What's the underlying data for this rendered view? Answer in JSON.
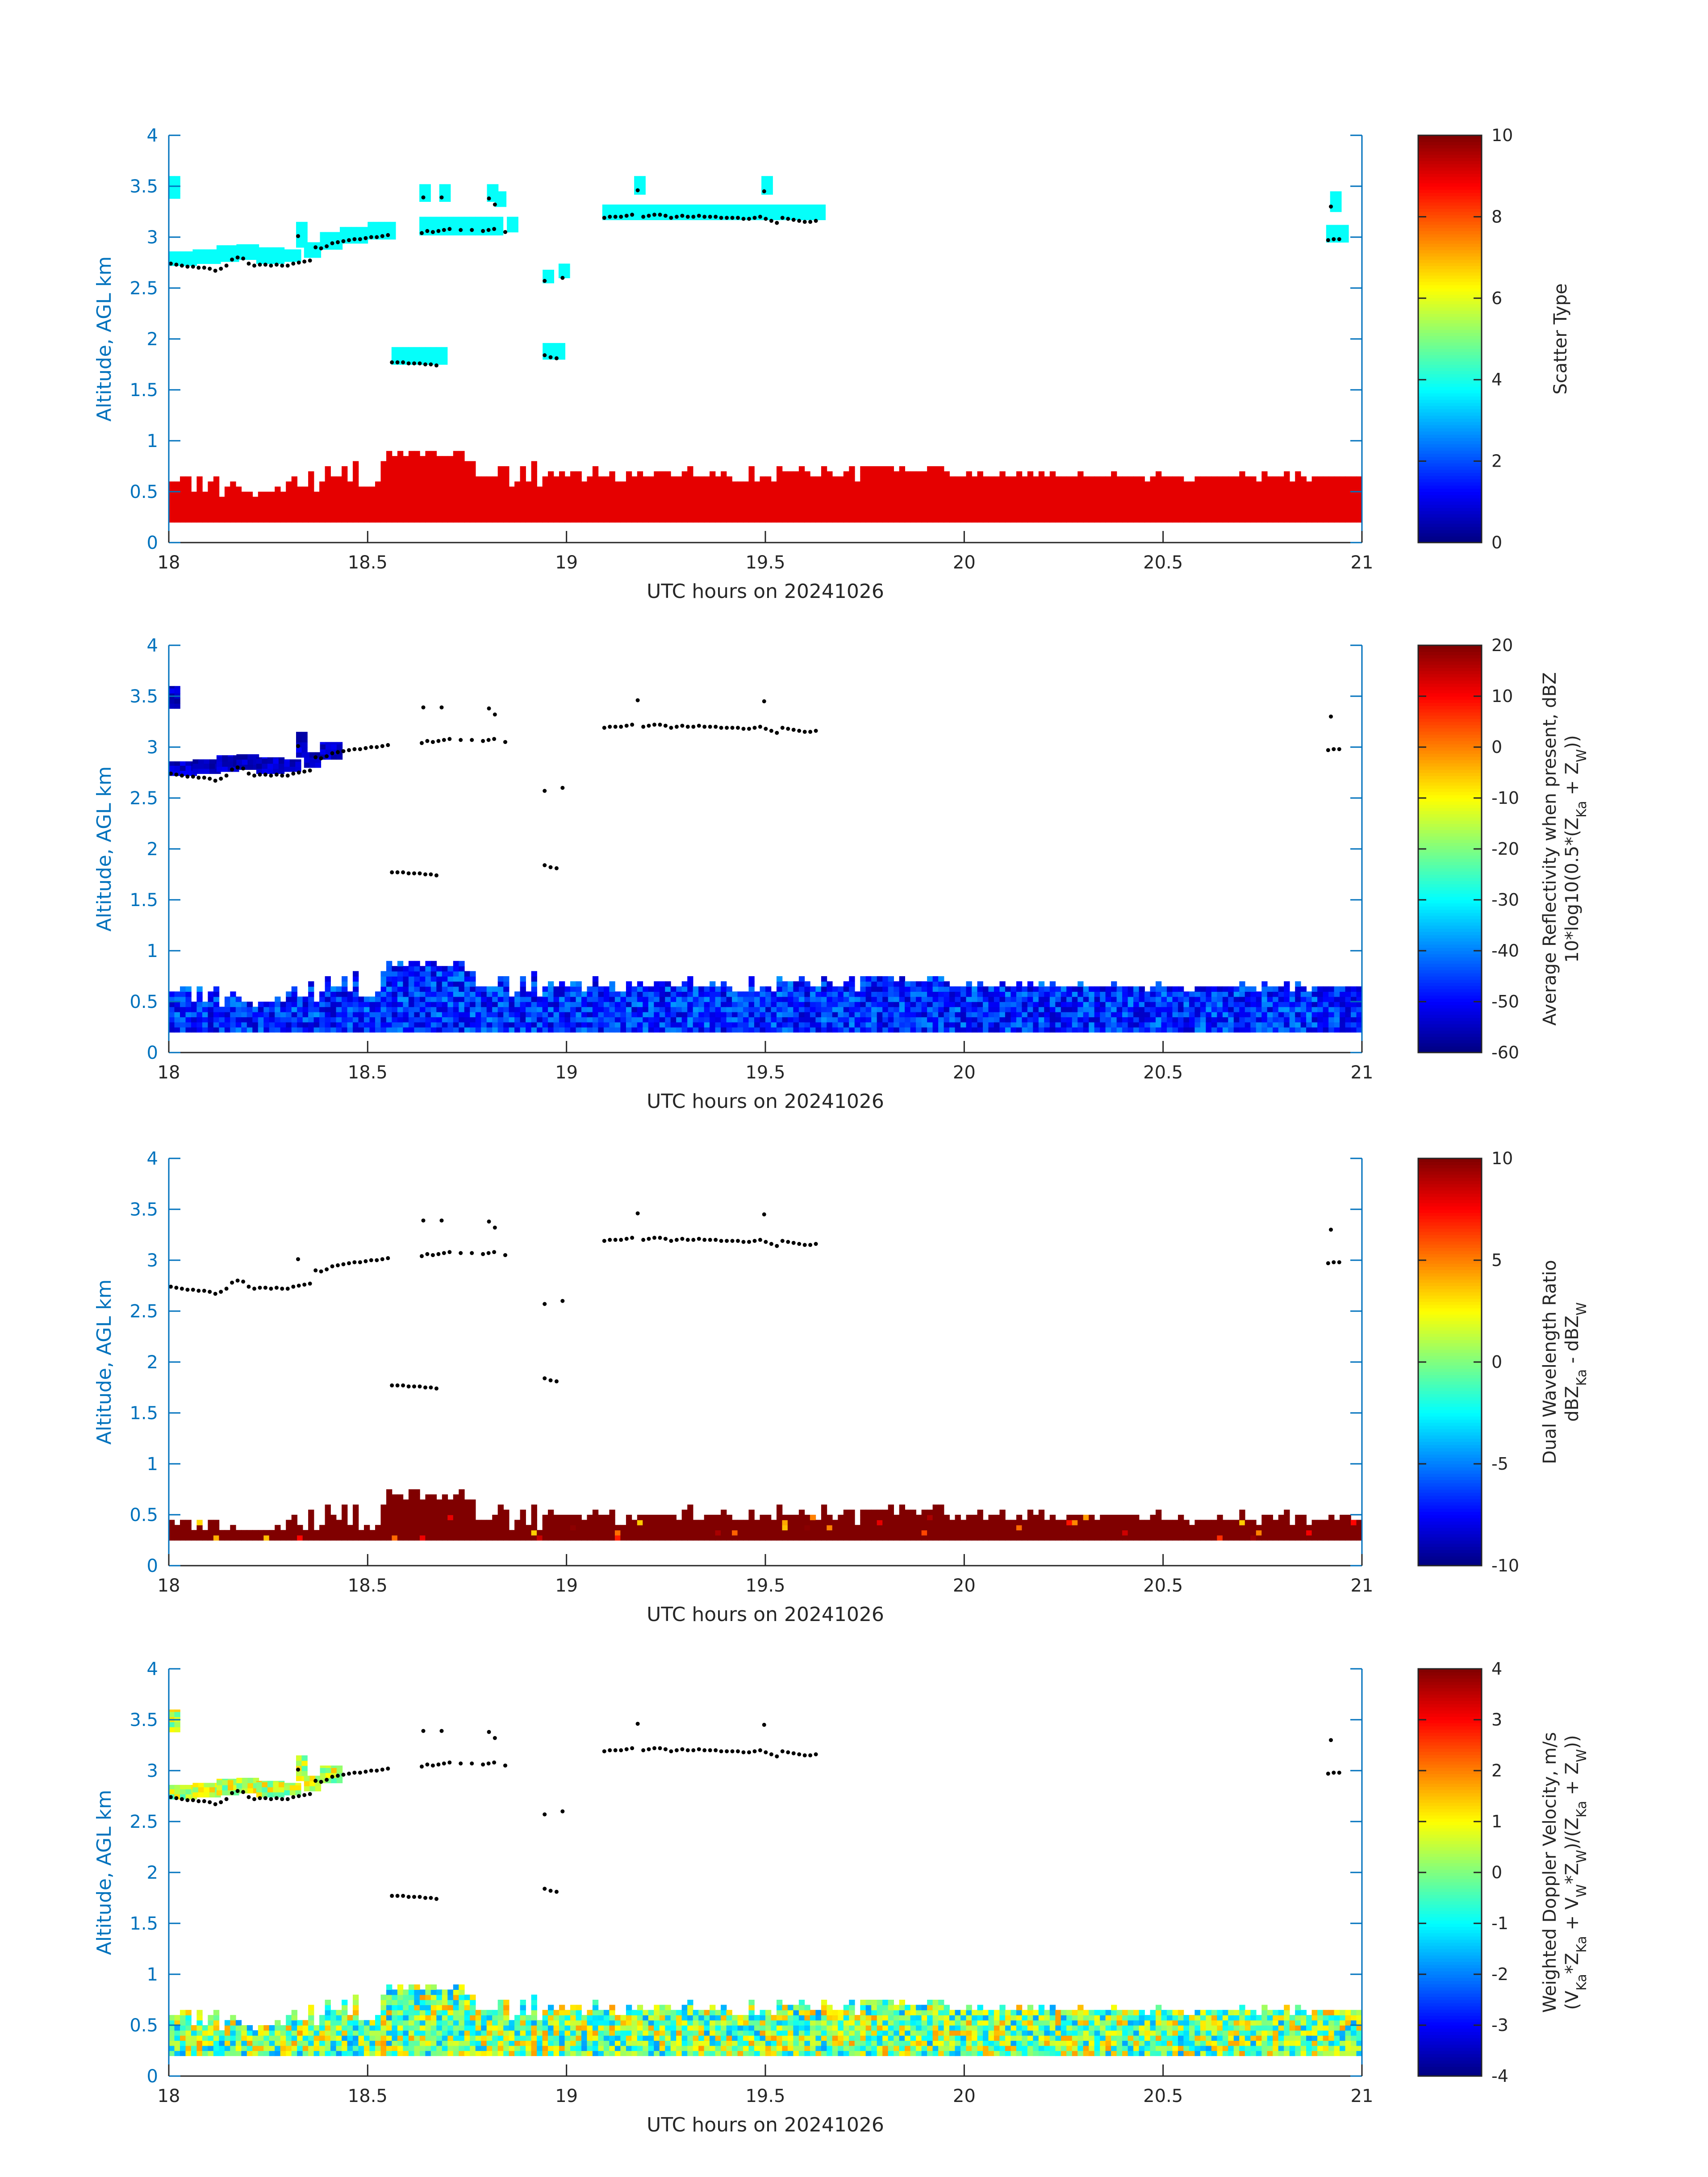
{
  "chart_data": [
    {
      "type": "heatmap",
      "ylabel": "Altitude, AGL km",
      "xlabel": "UTC hours on 20241026",
      "xlim": [
        18,
        21
      ],
      "ylim": [
        0,
        4
      ],
      "xticks": [
        "18",
        "18.5",
        "19",
        "19.5",
        "20",
        "20.5",
        "21"
      ],
      "yticks": [
        "0",
        "0.5",
        "1",
        "1.5",
        "2",
        "2.5",
        "3",
        "3.5",
        "4"
      ],
      "colorbar": {
        "label_lines": [
          "Scatter Type"
        ],
        "range": [
          0,
          10
        ],
        "ticks": [
          "0",
          "2",
          "4",
          "6",
          "8",
          "10"
        ]
      },
      "fields": {
        "low_layer": {
          "value": 9,
          "base_km": 0.2,
          "top_km_range": [
            0.3,
            0.95
          ]
        },
        "cloud_layer": {
          "value": 3.8
        }
      }
    },
    {
      "type": "heatmap",
      "ylabel": "Altitude, AGL km",
      "xlabel": "UTC hours on 20241026",
      "xlim": [
        18,
        21
      ],
      "ylim": [
        0,
        4
      ],
      "xticks": [
        "18",
        "18.5",
        "19",
        "19.5",
        "20",
        "20.5",
        "21"
      ],
      "yticks": [
        "0",
        "0.5",
        "1",
        "1.5",
        "2",
        "2.5",
        "3",
        "3.5",
        "4"
      ],
      "colorbar": {
        "label_lines": [
          "Average Reflectivity when present, dBZ",
          "10*log10(0.5*(Z",
          "Ka",
          " + Z",
          "W",
          "))"
        ],
        "range": [
          -60,
          20
        ],
        "ticks": [
          "-60",
          "-50",
          "-40",
          "-30",
          "-20",
          "-10",
          "0",
          "10",
          "20"
        ]
      },
      "fields": {
        "low_layer": {
          "value_range": [
            -55,
            -38
          ],
          "base_km": 0.2,
          "top_km_range": [
            0.3,
            0.95
          ]
        },
        "cloud_layer": {
          "value_range": [
            -58,
            -50
          ]
        }
      }
    },
    {
      "type": "heatmap",
      "ylabel": "Altitude, AGL km",
      "xlabel": "UTC hours on 20241026",
      "xlim": [
        18,
        21
      ],
      "ylim": [
        0,
        4
      ],
      "xticks": [
        "18",
        "18.5",
        "19",
        "19.5",
        "20",
        "20.5",
        "21"
      ],
      "yticks": [
        "0",
        "0.5",
        "1",
        "1.5",
        "2",
        "2.5",
        "3",
        "3.5",
        "4"
      ],
      "colorbar": {
        "label_lines": [
          "Dual Wavelength Ratio",
          "dBZ",
          "Ka",
          " - dBZ",
          "W"
        ],
        "range": [
          -10,
          10
        ],
        "ticks": [
          "-10",
          "-5",
          "0",
          "5",
          "10"
        ]
      },
      "fields": {
        "low_layer": {
          "value": 10,
          "base_km": 0.25,
          "top_km_range": [
            0.35,
            0.75
          ]
        }
      }
    },
    {
      "type": "heatmap",
      "ylabel": "Altitude, AGL km",
      "xlabel": "UTC hours on 20241026",
      "xlim": [
        18,
        21
      ],
      "ylim": [
        0,
        4
      ],
      "xticks": [
        "18",
        "18.5",
        "19",
        "19.5",
        "20",
        "20.5",
        "21"
      ],
      "yticks": [
        "0",
        "0.5",
        "1",
        "1.5",
        "2",
        "2.5",
        "3",
        "3.5",
        "4"
      ],
      "colorbar": {
        "label_lines": [
          "Weighted Doppler Velocity, m/s",
          "(V",
          "Ka",
          "*Z",
          "Ka",
          " + V",
          "W",
          "*Z",
          "W",
          ")/(Z",
          "Ka",
          " + Z",
          "W",
          "))"
        ],
        "range": [
          -4,
          4
        ],
        "ticks": [
          "-4",
          "-3",
          "-2",
          "-1",
          "0",
          "1",
          "2",
          "3",
          "4"
        ]
      },
      "fields": {
        "low_layer": {
          "value_range": [
            -1.8,
            1.8
          ],
          "base_km": 0.2,
          "top_km_range": [
            0.3,
            0.95
          ]
        },
        "cloud_layer": {
          "value_range": [
            -0.5,
            1.5
          ]
        }
      }
    }
  ],
  "cloud_segments": [
    {
      "t0": 18.0,
      "t1": 18.015,
      "lo": 3.38,
      "hi": 3.6
    },
    {
      "t0": 18.0,
      "t1": 18.06,
      "lo": 2.72,
      "hi": 2.86
    },
    {
      "t0": 18.06,
      "t1": 18.12,
      "lo": 2.74,
      "hi": 2.88
    },
    {
      "t0": 18.12,
      "t1": 18.17,
      "lo": 2.76,
      "hi": 2.92
    },
    {
      "t0": 18.17,
      "t1": 18.22,
      "lo": 2.78,
      "hi": 2.93
    },
    {
      "t0": 18.22,
      "t1": 18.29,
      "lo": 2.74,
      "hi": 2.9
    },
    {
      "t0": 18.29,
      "t1": 18.32,
      "lo": 2.76,
      "hi": 2.88
    },
    {
      "t0": 18.32,
      "t1": 18.34,
      "lo": 2.9,
      "hi": 3.15
    },
    {
      "t0": 18.34,
      "t1": 18.38,
      "lo": 2.8,
      "hi": 2.95
    },
    {
      "t0": 18.38,
      "t1": 18.43,
      "lo": 2.88,
      "hi": 3.05
    },
    {
      "t0": 18.43,
      "t1": 18.5,
      "lo": 2.94,
      "hi": 3.1
    },
    {
      "t0": 18.5,
      "t1": 18.56,
      "lo": 2.98,
      "hi": 3.15
    },
    {
      "t0": 18.63,
      "t1": 18.65,
      "lo": 3.35,
      "hi": 3.52
    },
    {
      "t0": 18.63,
      "t1": 18.84,
      "lo": 3.02,
      "hi": 3.2
    },
    {
      "t0": 18.68,
      "t1": 18.7,
      "lo": 3.35,
      "hi": 3.52
    },
    {
      "t0": 18.8,
      "t1": 18.82,
      "lo": 3.35,
      "hi": 3.52
    },
    {
      "t0": 18.82,
      "t1": 18.84,
      "lo": 3.3,
      "hi": 3.45
    },
    {
      "t0": 18.85,
      "t1": 18.87,
      "lo": 3.05,
      "hi": 3.2
    },
    {
      "t0": 18.56,
      "t1": 18.69,
      "lo": 1.75,
      "hi": 1.92
    },
    {
      "t0": 18.94,
      "t1": 18.96,
      "lo": 2.55,
      "hi": 2.68
    },
    {
      "t0": 18.98,
      "t1": 19.0,
      "lo": 2.6,
      "hi": 2.74
    },
    {
      "t0": 18.94,
      "t1": 18.99,
      "lo": 1.8,
      "hi": 1.96
    },
    {
      "t0": 19.09,
      "t1": 19.65,
      "lo": 3.17,
      "hi": 3.32
    },
    {
      "t0": 19.17,
      "t1": 19.19,
      "lo": 3.42,
      "hi": 3.6
    },
    {
      "t0": 19.49,
      "t1": 19.51,
      "lo": 3.42,
      "hi": 3.6
    },
    {
      "t0": 20.92,
      "t1": 20.94,
      "lo": 3.25,
      "hi": 3.45
    },
    {
      "t0": 20.91,
      "t1": 20.96,
      "lo": 2.95,
      "hi": 3.12
    }
  ],
  "lidar_cloud_base_points": [
    [
      18.005,
      2.74
    ],
    [
      18.019,
      2.73
    ],
    [
      18.033,
      2.72
    ],
    [
      18.047,
      2.71
    ],
    [
      18.061,
      2.71
    ],
    [
      18.075,
      2.7
    ],
    [
      18.089,
      2.7
    ],
    [
      18.103,
      2.69
    ],
    [
      18.117,
      2.67
    ],
    [
      18.131,
      2.69
    ],
    [
      18.145,
      2.72
    ],
    [
      18.159,
      2.78
    ],
    [
      18.173,
      2.8
    ],
    [
      18.187,
      2.79
    ],
    [
      18.201,
      2.74
    ],
    [
      18.215,
      2.72
    ],
    [
      18.229,
      2.73
    ],
    [
      18.243,
      2.73
    ],
    [
      18.257,
      2.72
    ],
    [
      18.271,
      2.73
    ],
    [
      18.285,
      2.72
    ],
    [
      18.299,
      2.72
    ],
    [
      18.313,
      2.74
    ],
    [
      18.325,
      3.01
    ],
    [
      18.327,
      2.75
    ],
    [
      18.341,
      2.76
    ],
    [
      18.355,
      2.77
    ],
    [
      18.369,
      2.9
    ],
    [
      18.383,
      2.89
    ],
    [
      18.397,
      2.91
    ],
    [
      18.411,
      2.94
    ],
    [
      18.425,
      2.95
    ],
    [
      18.439,
      2.96
    ],
    [
      18.453,
      2.97
    ],
    [
      18.467,
      2.98
    ],
    [
      18.481,
      2.98
    ],
    [
      18.495,
      2.99
    ],
    [
      18.509,
      3.0
    ],
    [
      18.523,
      3.0
    ],
    [
      18.537,
      3.01
    ],
    [
      18.551,
      3.02
    ],
    [
      18.636,
      3.04
    ],
    [
      18.65,
      3.06
    ],
    [
      18.664,
      3.05
    ],
    [
      18.678,
      3.06
    ],
    [
      18.692,
      3.07
    ],
    [
      18.706,
      3.08
    ],
    [
      18.734,
      3.07
    ],
    [
      18.762,
      3.07
    ],
    [
      18.79,
      3.06
    ],
    [
      18.804,
      3.07
    ],
    [
      18.818,
      3.08
    ],
    [
      18.846,
      3.05
    ],
    [
      18.64,
      3.39
    ],
    [
      18.686,
      3.39
    ],
    [
      18.805,
      3.38
    ],
    [
      18.82,
      3.32
    ],
    [
      18.561,
      1.77
    ],
    [
      18.575,
      1.77
    ],
    [
      18.589,
      1.77
    ],
    [
      18.603,
      1.76
    ],
    [
      18.617,
      1.76
    ],
    [
      18.631,
      1.76
    ],
    [
      18.645,
      1.75
    ],
    [
      18.659,
      1.75
    ],
    [
      18.673,
      1.74
    ],
    [
      18.945,
      2.57
    ],
    [
      18.99,
      2.6
    ],
    [
      18.945,
      1.84
    ],
    [
      18.96,
      1.82
    ],
    [
      18.975,
      1.81
    ],
    [
      19.095,
      3.19
    ],
    [
      19.109,
      3.2
    ],
    [
      19.123,
      3.2
    ],
    [
      19.137,
      3.2
    ],
    [
      19.151,
      3.21
    ],
    [
      19.165,
      3.22
    ],
    [
      19.179,
      3.46
    ],
    [
      19.193,
      3.2
    ],
    [
      19.207,
      3.21
    ],
    [
      19.221,
      3.22
    ],
    [
      19.235,
      3.22
    ],
    [
      19.249,
      3.21
    ],
    [
      19.263,
      3.19
    ],
    [
      19.277,
      3.2
    ],
    [
      19.291,
      3.21
    ],
    [
      19.305,
      3.2
    ],
    [
      19.319,
      3.2
    ],
    [
      19.333,
      3.21
    ],
    [
      19.347,
      3.2
    ],
    [
      19.361,
      3.2
    ],
    [
      19.375,
      3.2
    ],
    [
      19.389,
      3.19
    ],
    [
      19.403,
      3.19
    ],
    [
      19.417,
      3.19
    ],
    [
      19.431,
      3.19
    ],
    [
      19.445,
      3.18
    ],
    [
      19.459,
      3.18
    ],
    [
      19.473,
      3.19
    ],
    [
      19.487,
      3.2
    ],
    [
      19.497,
      3.45
    ],
    [
      19.501,
      3.18
    ],
    [
      19.515,
      3.16
    ],
    [
      19.529,
      3.14
    ],
    [
      19.543,
      3.19
    ],
    [
      19.557,
      3.18
    ],
    [
      19.571,
      3.17
    ],
    [
      19.585,
      3.16
    ],
    [
      19.599,
      3.15
    ],
    [
      19.613,
      3.15
    ],
    [
      19.627,
      3.16
    ],
    [
      20.922,
      3.3
    ],
    [
      20.915,
      2.97
    ],
    [
      20.929,
      2.98
    ],
    [
      20.943,
      2.98
    ]
  ]
}
